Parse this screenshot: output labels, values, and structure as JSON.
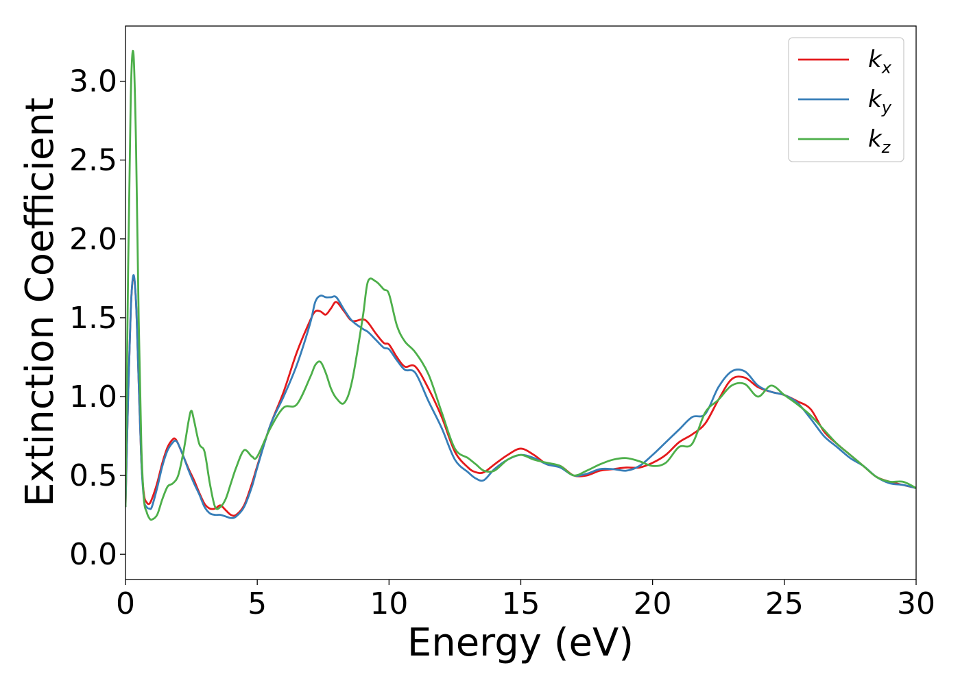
{
  "chart_data": {
    "type": "line",
    "xlabel": "Energy (eV)",
    "ylabel": "Extinction Coefficient",
    "xlim": [
      0,
      30
    ],
    "ylim": [
      -0.16,
      3.35
    ],
    "x_ticks": [
      0,
      5,
      10,
      15,
      20,
      25,
      30
    ],
    "y_ticks": [
      0.0,
      0.5,
      1.0,
      1.5,
      2.0,
      2.5,
      3.0
    ],
    "x_tick_labels": [
      "0",
      "5",
      "10",
      "15",
      "20",
      "25",
      "30"
    ],
    "y_tick_labels": [
      "0.0",
      "0.5",
      "1.0",
      "1.5",
      "2.0",
      "2.5",
      "3.0"
    ],
    "grid": false,
    "legend_position": "top-right",
    "series": [
      {
        "name": "kx",
        "legend_main": "k",
        "legend_sub": "x",
        "color": "#e41a1c",
        "x": [
          0,
          0.1,
          0.2,
          0.3,
          0.4,
          0.5,
          0.6,
          0.7,
          0.8,
          0.9,
          1.0,
          1.2,
          1.4,
          1.6,
          1.8,
          1.9,
          2.0,
          2.2,
          2.4,
          2.6,
          2.8,
          3.0,
          3.2,
          3.4,
          3.6,
          3.8,
          4.0,
          4.2,
          4.5,
          4.8,
          5.0,
          5.5,
          6.0,
          6.5,
          7.0,
          7.2,
          7.4,
          7.6,
          7.8,
          8.0,
          8.3,
          8.6,
          9.0,
          9.2,
          9.5,
          9.8,
          10.0,
          10.3,
          10.6,
          11.0,
          11.5,
          12.0,
          12.5,
          13.0,
          13.3,
          13.6,
          14.0,
          14.5,
          15.0,
          15.5,
          16.0,
          16.5,
          17.0,
          17.5,
          18.0,
          18.5,
          19.0,
          19.5,
          20.0,
          20.5,
          21.0,
          21.5,
          22.0,
          22.5,
          23.0,
          23.5,
          24.0,
          24.5,
          25.0,
          25.5,
          26.0,
          26.5,
          27.0,
          27.5,
          28.0,
          28.5,
          29.0,
          29.5,
          30.0
        ],
        "values": [
          0.3,
          1.0,
          1.55,
          1.76,
          1.6,
          1.1,
          0.6,
          0.38,
          0.33,
          0.32,
          0.35,
          0.45,
          0.58,
          0.68,
          0.73,
          0.73,
          0.7,
          0.62,
          0.54,
          0.47,
          0.39,
          0.32,
          0.29,
          0.29,
          0.31,
          0.28,
          0.25,
          0.25,
          0.31,
          0.45,
          0.56,
          0.82,
          1.03,
          1.28,
          1.48,
          1.54,
          1.54,
          1.52,
          1.56,
          1.6,
          1.54,
          1.48,
          1.49,
          1.47,
          1.4,
          1.34,
          1.33,
          1.25,
          1.19,
          1.19,
          1.05,
          0.87,
          0.65,
          0.55,
          0.52,
          0.52,
          0.57,
          0.63,
          0.67,
          0.63,
          0.57,
          0.56,
          0.5,
          0.5,
          0.53,
          0.54,
          0.55,
          0.55,
          0.58,
          0.63,
          0.71,
          0.76,
          0.83,
          0.98,
          1.11,
          1.12,
          1.06,
          1.03,
          1.01,
          0.97,
          0.92,
          0.78,
          0.7,
          0.63,
          0.56,
          0.49,
          0.46,
          0.44,
          0.42
        ]
      },
      {
        "name": "ky",
        "legend_main": "k",
        "legend_sub": "y",
        "color": "#377eb8",
        "x": [
          0,
          0.1,
          0.2,
          0.3,
          0.4,
          0.5,
          0.6,
          0.7,
          0.8,
          0.9,
          1.0,
          1.2,
          1.4,
          1.6,
          1.8,
          1.9,
          2.0,
          2.2,
          2.4,
          2.6,
          2.8,
          3.0,
          3.2,
          3.4,
          3.6,
          3.8,
          4.0,
          4.2,
          4.5,
          4.8,
          5.0,
          5.5,
          6.0,
          6.5,
          7.0,
          7.2,
          7.4,
          7.6,
          7.8,
          8.0,
          8.3,
          8.6,
          9.0,
          9.2,
          9.5,
          9.8,
          10.0,
          10.3,
          10.6,
          11.0,
          11.5,
          12.0,
          12.5,
          13.0,
          13.3,
          13.6,
          14.0,
          14.5,
          15.0,
          15.5,
          16.0,
          16.5,
          17.0,
          17.5,
          18.0,
          18.5,
          19.0,
          19.5,
          20.0,
          20.5,
          21.0,
          21.5,
          22.0,
          22.5,
          23.0,
          23.5,
          24.0,
          24.5,
          25.0,
          25.5,
          26.0,
          26.5,
          27.0,
          27.5,
          28.0,
          28.5,
          29.0,
          29.5,
          30.0
        ],
        "values": [
          0.3,
          1.0,
          1.55,
          1.77,
          1.6,
          1.1,
          0.6,
          0.35,
          0.3,
          0.29,
          0.3,
          0.42,
          0.56,
          0.66,
          0.71,
          0.72,
          0.7,
          0.62,
          0.53,
          0.45,
          0.38,
          0.3,
          0.26,
          0.25,
          0.25,
          0.24,
          0.23,
          0.24,
          0.3,
          0.43,
          0.55,
          0.82,
          1.0,
          1.2,
          1.46,
          1.6,
          1.64,
          1.63,
          1.63,
          1.63,
          1.55,
          1.48,
          1.43,
          1.41,
          1.36,
          1.31,
          1.3,
          1.23,
          1.17,
          1.15,
          0.97,
          0.8,
          0.6,
          0.52,
          0.48,
          0.47,
          0.54,
          0.6,
          0.63,
          0.61,
          0.57,
          0.55,
          0.5,
          0.51,
          0.54,
          0.54,
          0.53,
          0.56,
          0.63,
          0.71,
          0.79,
          0.87,
          0.89,
          1.06,
          1.16,
          1.16,
          1.07,
          1.03,
          1.01,
          0.96,
          0.86,
          0.75,
          0.68,
          0.61,
          0.56,
          0.49,
          0.45,
          0.44,
          0.42
        ]
      },
      {
        "name": "kz",
        "legend_main": "k",
        "legend_sub": "z",
        "color": "#4daf4a",
        "x": [
          0,
          0.1,
          0.2,
          0.3,
          0.4,
          0.5,
          0.6,
          0.7,
          0.8,
          0.9,
          1.0,
          1.2,
          1.4,
          1.6,
          1.8,
          2.0,
          2.2,
          2.4,
          2.5,
          2.6,
          2.8,
          3.0,
          3.2,
          3.4,
          3.6,
          3.8,
          4.0,
          4.2,
          4.5,
          4.8,
          5.0,
          5.5,
          6.0,
          6.5,
          7.0,
          7.2,
          7.4,
          7.6,
          7.8,
          8.0,
          8.3,
          8.6,
          9.0,
          9.2,
          9.5,
          9.8,
          10.0,
          10.3,
          10.6,
          11.0,
          11.5,
          12.0,
          12.5,
          13.0,
          13.3,
          13.6,
          14.0,
          14.5,
          15.0,
          15.5,
          16.0,
          16.5,
          17.0,
          17.5,
          18.0,
          18.5,
          19.0,
          19.5,
          20.0,
          20.5,
          21.0,
          21.5,
          22.0,
          22.5,
          23.0,
          23.5,
          24.0,
          24.5,
          25.0,
          25.5,
          26.0,
          26.5,
          27.0,
          27.5,
          28.0,
          28.5,
          29.0,
          29.5,
          30.0
        ],
        "values": [
          0.3,
          1.8,
          2.9,
          3.18,
          2.6,
          1.5,
          0.7,
          0.35,
          0.27,
          0.23,
          0.22,
          0.25,
          0.35,
          0.43,
          0.45,
          0.5,
          0.65,
          0.85,
          0.91,
          0.85,
          0.7,
          0.65,
          0.45,
          0.3,
          0.3,
          0.35,
          0.45,
          0.55,
          0.66,
          0.62,
          0.62,
          0.8,
          0.93,
          0.95,
          1.12,
          1.2,
          1.22,
          1.15,
          1.05,
          0.99,
          0.96,
          1.1,
          1.5,
          1.73,
          1.73,
          1.68,
          1.65,
          1.45,
          1.35,
          1.28,
          1.14,
          0.9,
          0.67,
          0.61,
          0.57,
          0.53,
          0.53,
          0.6,
          0.63,
          0.6,
          0.58,
          0.56,
          0.5,
          0.53,
          0.57,
          0.6,
          0.61,
          0.59,
          0.56,
          0.58,
          0.68,
          0.7,
          0.9,
          0.98,
          1.07,
          1.08,
          1.0,
          1.07,
          1.01,
          0.95,
          0.88,
          0.79,
          0.7,
          0.63,
          0.56,
          0.49,
          0.46,
          0.46,
          0.42
        ]
      }
    ]
  }
}
